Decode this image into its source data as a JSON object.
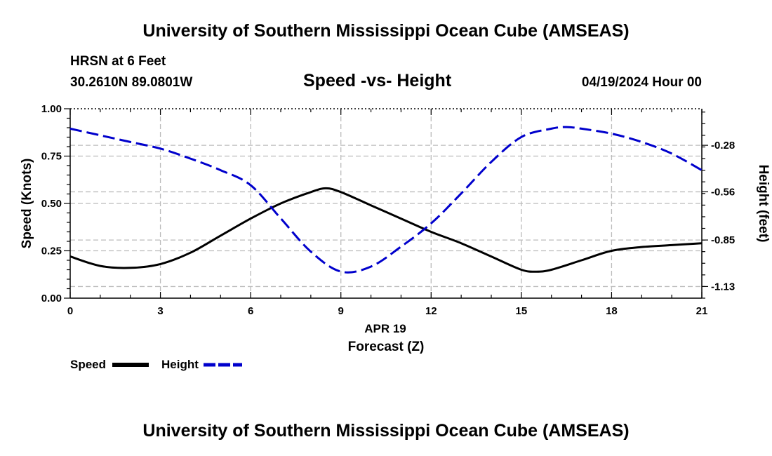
{
  "header": {
    "title": "University of Southern Mississippi Ocean Cube (AMSEAS)",
    "station": "HRSN at 6 Feet",
    "coordinates": "30.2610N  89.0801W",
    "datetime": "04/19/2024 Hour 00"
  },
  "footer": {
    "title": "University of Southern Mississippi Ocean Cube (AMSEAS)"
  },
  "chart_data": {
    "type": "line",
    "title": "Speed -vs- Height",
    "xlabel": "Forecast (Z)",
    "xlabel_date": "APR 19",
    "ylabel": "Speed (Knots)",
    "y2label": "Height (feet)",
    "xlim": [
      0,
      21
    ],
    "ylim": [
      0,
      1.0
    ],
    "y2lim": [
      -1.2,
      -0.06
    ],
    "x_ticks": [
      "0",
      "3",
      "6",
      "9",
      "12",
      "15",
      "18",
      "21"
    ],
    "y_ticks": [
      "0.00",
      "0.25",
      "0.50",
      "0.75",
      "1.00"
    ],
    "y2_ticks": [
      "-0.28",
      "-0.56",
      "-0.85",
      "-1.13"
    ],
    "grid": true,
    "legend_position": "bottom-left",
    "series": [
      {
        "name": "Speed",
        "axis": "left",
        "color": "#000000",
        "style": "solid",
        "x": [
          0,
          1,
          2,
          3,
          4,
          5,
          6,
          7,
          8,
          8.5,
          9,
          10,
          11,
          12,
          13,
          14,
          15,
          15.5,
          16,
          17,
          18,
          19,
          20,
          21
        ],
        "values": [
          0.22,
          0.17,
          0.16,
          0.18,
          0.24,
          0.33,
          0.42,
          0.5,
          0.56,
          0.58,
          0.56,
          0.49,
          0.42,
          0.35,
          0.29,
          0.22,
          0.15,
          0.14,
          0.15,
          0.2,
          0.25,
          0.27,
          0.28,
          0.29
        ]
      },
      {
        "name": "Height",
        "axis": "right",
        "color": "#0000cc",
        "style": "dashed",
        "x": [
          0,
          1,
          2,
          3,
          4,
          5,
          6,
          7,
          8,
          9,
          10,
          11,
          12,
          13,
          14,
          15,
          16,
          16.5,
          17,
          18,
          19,
          20,
          21
        ],
        "values": [
          -0.18,
          -0.22,
          -0.26,
          -0.3,
          -0.36,
          -0.43,
          -0.52,
          -0.72,
          -0.92,
          -1.04,
          -1.01,
          -0.89,
          -0.75,
          -0.57,
          -0.38,
          -0.23,
          -0.18,
          -0.17,
          -0.18,
          -0.21,
          -0.26,
          -0.33,
          -0.43
        ]
      }
    ]
  },
  "legend": {
    "speed_label": "Speed",
    "height_label": "Height"
  }
}
